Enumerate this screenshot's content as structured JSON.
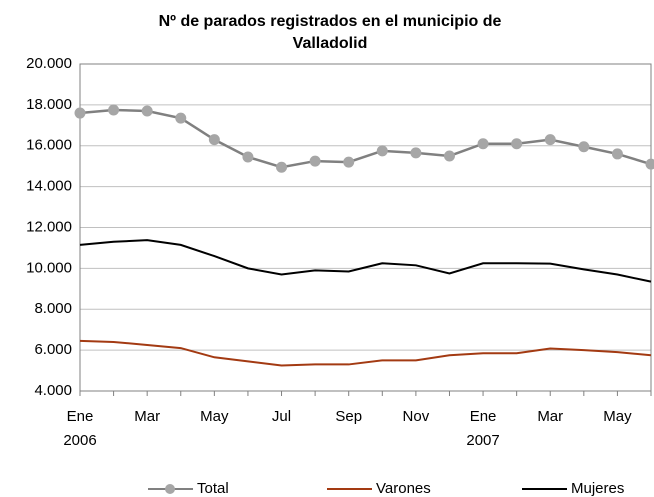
{
  "chart_data": {
    "type": "line",
    "title": [
      "Nº de parados registrados en el municipio de",
      "Valladolid"
    ],
    "categories": [
      "Ene",
      null,
      "Mar",
      null,
      "May",
      null,
      "Jul",
      null,
      "Sep",
      null,
      "Nov",
      null,
      "Ene",
      null,
      "Mar",
      null,
      "May",
      null
    ],
    "category_years": [
      "2006",
      null,
      null,
      null,
      null,
      null,
      null,
      null,
      null,
      null,
      null,
      null,
      "2007",
      null,
      null,
      null,
      null,
      null
    ],
    "series": [
      {
        "name": "Total",
        "color": "#808080",
        "marker": "#a6a6a6",
        "values": [
          17600,
          17750,
          17700,
          17350,
          16300,
          15450,
          14950,
          15250,
          15200,
          15750,
          15650,
          15500,
          16100,
          16100,
          16300,
          15950,
          15600,
          15100
        ]
      },
      {
        "name": "Varones",
        "color": "#a33a12",
        "values": [
          6450,
          6400,
          6250,
          6100,
          5650,
          5450,
          5250,
          5300,
          5300,
          5500,
          5500,
          5750,
          5850,
          5850,
          6080,
          6000,
          5900,
          5750
        ]
      },
      {
        "name": "Mujeres",
        "color": "#000000",
        "values": [
          11150,
          11300,
          11380,
          11150,
          10600,
          10000,
          9700,
          9900,
          9850,
          10250,
          10150,
          9750,
          10250,
          10250,
          10230,
          9950,
          9700,
          9350
        ]
      }
    ],
    "ylim": [
      4000,
      20000
    ],
    "yticks": [
      {
        "value": 4000,
        "label": "4.000"
      },
      {
        "value": 6000,
        "label": "6.000"
      },
      {
        "value": 8000,
        "label": "8.000"
      },
      {
        "value": 10000,
        "label": "10.000"
      },
      {
        "value": 12000,
        "label": "12.000"
      },
      {
        "value": 14000,
        "label": "14.000"
      },
      {
        "value": 16000,
        "label": "16.000"
      },
      {
        "value": 18000,
        "label": "18.000"
      },
      {
        "value": 20000,
        "label": "20.000"
      }
    ],
    "grid": true
  }
}
